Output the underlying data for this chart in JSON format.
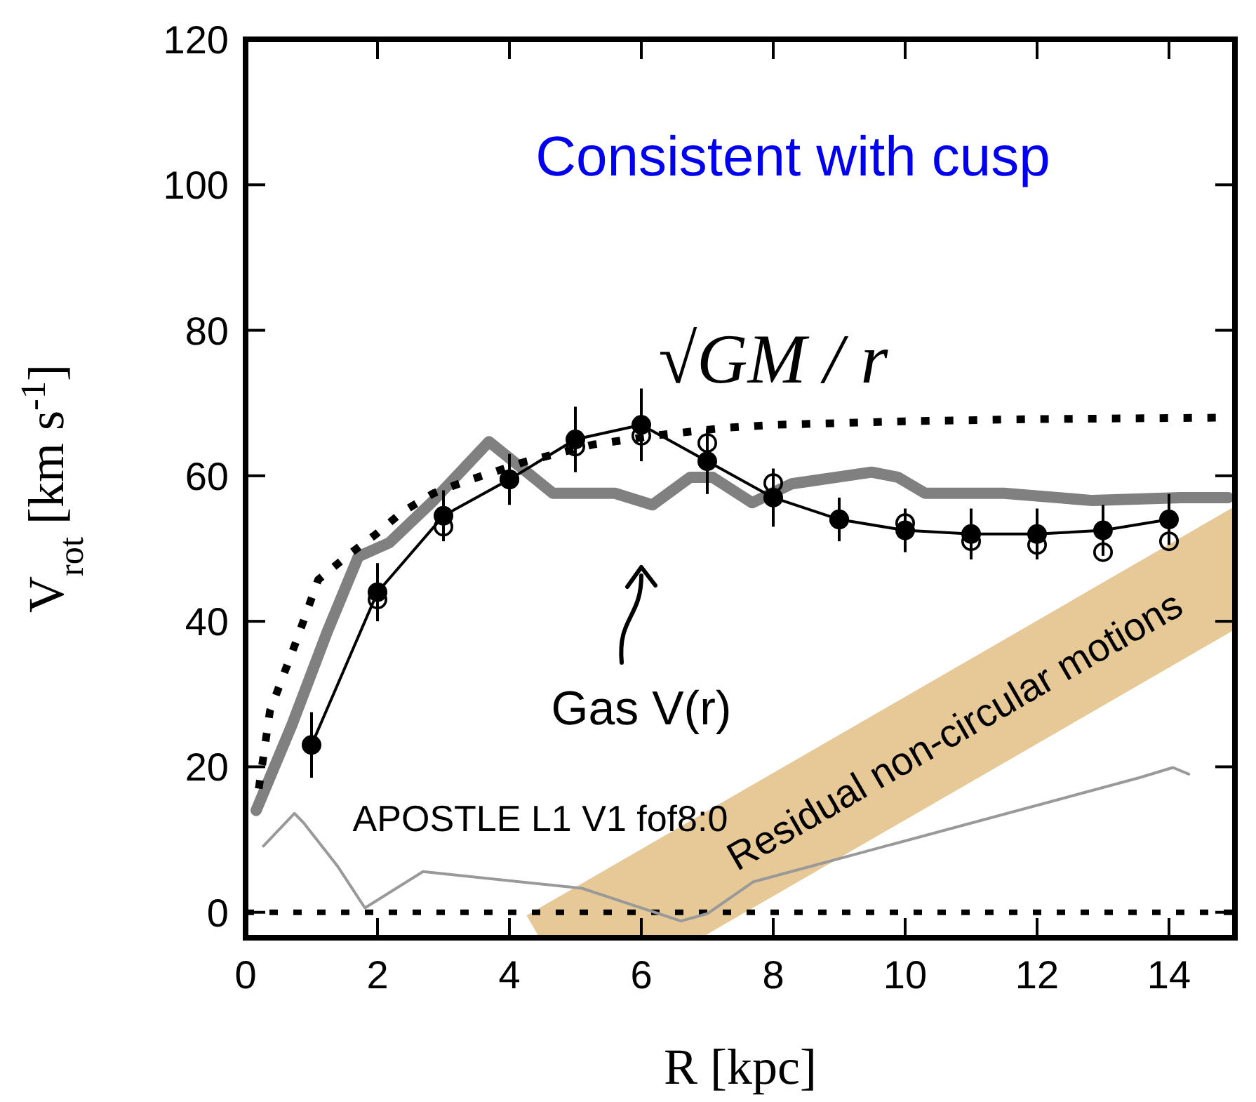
{
  "chart_data": {
    "type": "line",
    "xlabel": "R [kpc]",
    "ylabel": "V$_{rot}$ [km s$^{-1}$]",
    "xlim": [
      0,
      15
    ],
    "ylim": [
      -3.5,
      120
    ],
    "xticks": [
      0,
      2,
      4,
      6,
      8,
      10,
      12,
      14
    ],
    "yticks": [
      0,
      20,
      40,
      60,
      80,
      100,
      120
    ],
    "series": [
      {
        "color": "#000000",
        "marker": "circle",
        "x": [
          1,
          2,
          3,
          4,
          5,
          6,
          7,
          8,
          9,
          10,
          11,
          12,
          13,
          14
        ],
        "values": [
          23,
          44,
          54.5,
          59.5,
          65,
          67,
          62,
          57,
          54,
          52.5,
          52,
          52,
          52.5,
          54
        ],
        "errors": [
          4.5,
          4,
          3.5,
          3.5,
          4.5,
          5,
          4.5,
          4,
          3,
          3,
          3.5,
          3.5,
          3.5,
          3.5
        ]
      },
      {
        "type": "scatter",
        "color": "#000000",
        "marker": "circle",
        "x": [
          2,
          3,
          4,
          5,
          6,
          7,
          8,
          9,
          10,
          11,
          12,
          13,
          14
        ],
        "values": [
          43,
          53,
          59.5,
          64,
          65.5,
          64.5,
          59,
          54,
          53.5,
          51,
          50.5,
          49.5,
          51
        ]
      },
      {
        "color": "#808080",
        "x": [
          0.16,
          0.7,
          1.24,
          1.71,
          2.18,
          2.85,
          3.69,
          4.66,
          5.6,
          6.17,
          6.74,
          7.08,
          7.68,
          8.28,
          9.49,
          9.89,
          10.3,
          11.5,
          12.84,
          14.18,
          14.9
        ],
        "values": [
          14,
          25.7,
          38.6,
          48.9,
          50.8,
          56.6,
          64.7,
          57.6,
          57.6,
          56,
          59.8,
          59.8,
          56.3,
          58.9,
          60.5,
          59.8,
          57.6,
          57.6,
          56.6,
          57,
          57
        ]
      },
      {
        "color": "#999999",
        "x": [
          0.27,
          0.74,
          0.88,
          1.39,
          1.81,
          2.69,
          5.1,
          6.6,
          7.0,
          7.7,
          13.55,
          14.06,
          14.3
        ],
        "values": [
          9.1,
          13.6,
          12.3,
          6.4,
          0.6,
          5.6,
          3.3,
          -1.2,
          -0.2,
          4.2,
          18.5,
          19.9,
          19
        ]
      },
      {
        "name": "√GM / r",
        "color": "#000000",
        "line_style": "dotted",
        "x": [
          0.2,
          0.37,
          0.77,
          1.1,
          1.57,
          1.98,
          2.37,
          2.85,
          3.32,
          4.26,
          5.27,
          6.27,
          7.28,
          8,
          10,
          12,
          14.9
        ],
        "values": [
          17,
          27.7,
          37.3,
          45.7,
          49.2,
          52,
          55,
          57.6,
          59.2,
          62,
          64.3,
          65.6,
          66.6,
          67,
          67.5,
          67.8,
          68
        ]
      }
    ],
    "ref_lines": [
      {
        "axis": "y",
        "value": 0,
        "color": "#000000",
        "line_style": "dotted"
      }
    ],
    "annotations": [
      "Consistent with cusp",
      "Gas V(r)",
      "APOSTLE L1 V1 fof8:0",
      "Residual non-circular motions"
    ]
  }
}
